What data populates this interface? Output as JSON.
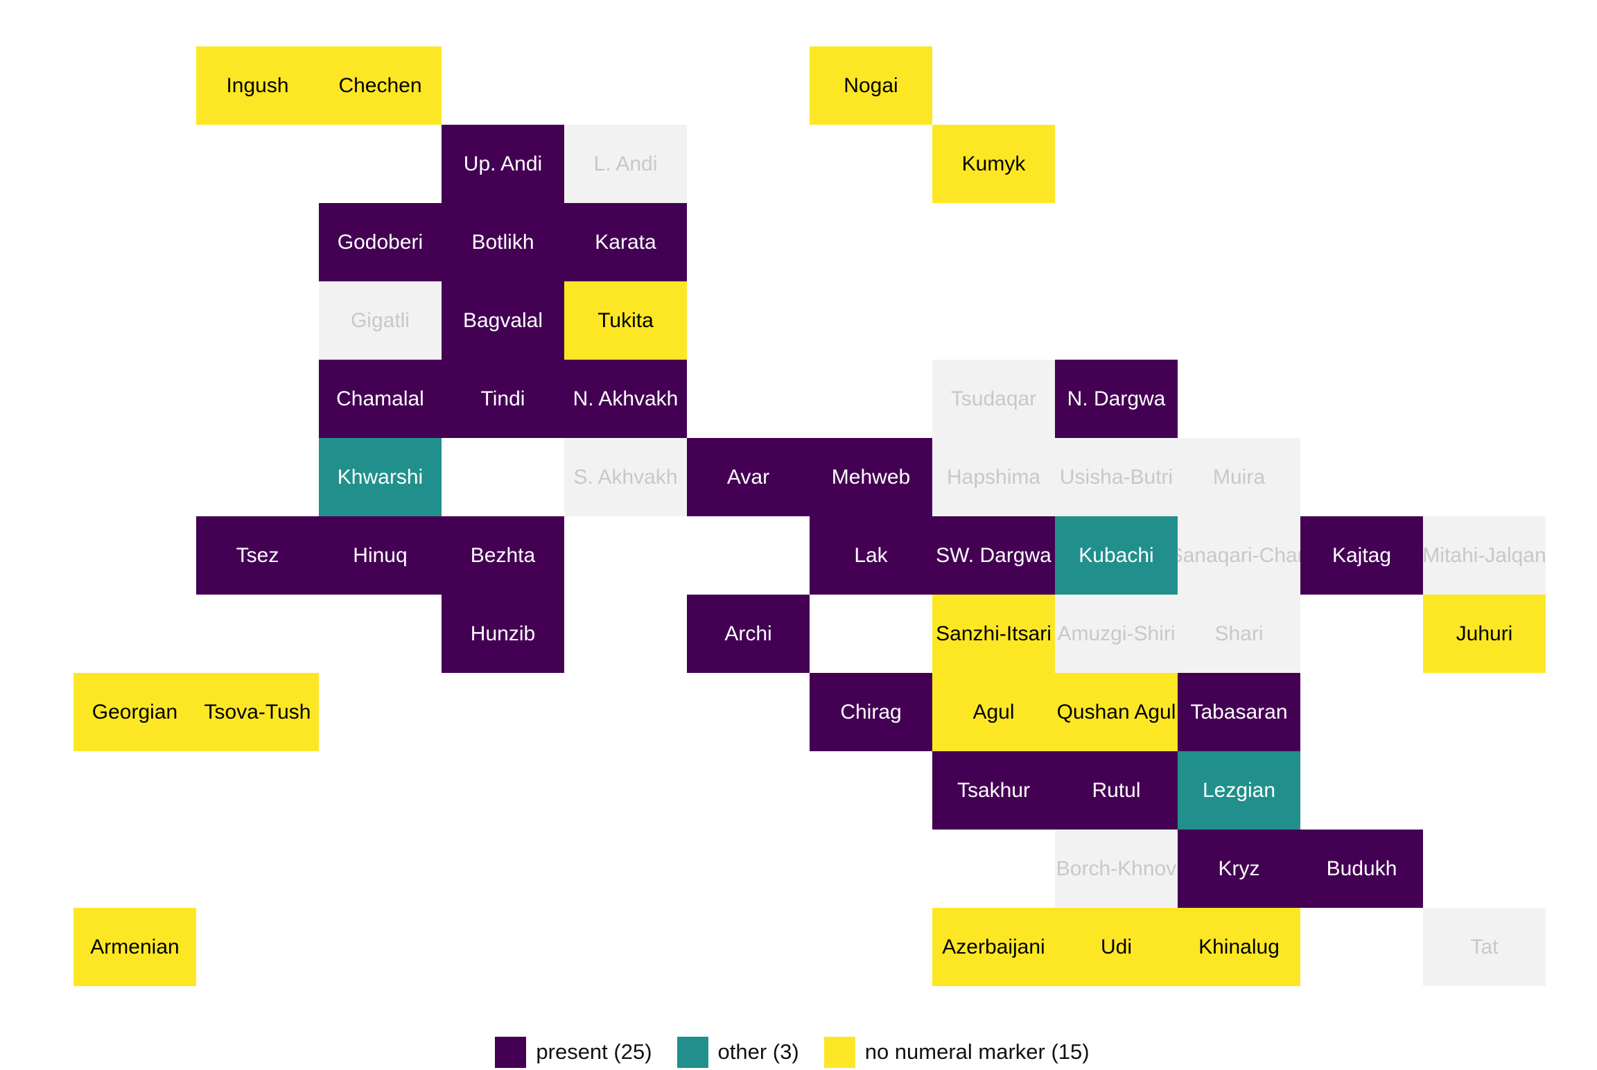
{
  "chart_data": {
    "type": "tile-grid",
    "colors": {
      "present": "#440154",
      "other": "#21908C",
      "no numeral marker": "#FDE725",
      "no data": "#F2F2F2"
    },
    "text_colors": {
      "present": "#ffffff",
      "other": "#ffffff",
      "no numeral marker": "#000000",
      "no data": "#c8c8c8"
    },
    "legend": [
      {
        "value": "present",
        "label": "present (25)",
        "color": "#440154"
      },
      {
        "value": "other",
        "label": "other (3)",
        "color": "#21908C"
      },
      {
        "value": "no numeral marker",
        "label": "no numeral marker (15)",
        "color": "#FDE725"
      }
    ],
    "tiles": [
      {
        "name": "Ingush",
        "col": 1,
        "row": 0,
        "value": "no numeral marker"
      },
      {
        "name": "Chechen",
        "col": 2,
        "row": 0,
        "value": "no numeral marker"
      },
      {
        "name": "Nogai",
        "col": 6,
        "row": 0,
        "value": "no numeral marker"
      },
      {
        "name": "Up. Andi",
        "col": 3,
        "row": 1,
        "value": "present"
      },
      {
        "name": "L. Andi",
        "col": 4,
        "row": 1,
        "value": "no data"
      },
      {
        "name": "Kumyk",
        "col": 7,
        "row": 1,
        "value": "no numeral marker"
      },
      {
        "name": "Godoberi",
        "col": 2,
        "row": 2,
        "value": "present"
      },
      {
        "name": "Botlikh",
        "col": 3,
        "row": 2,
        "value": "present"
      },
      {
        "name": "Karata",
        "col": 4,
        "row": 2,
        "value": "present"
      },
      {
        "name": "Gigatli",
        "col": 2,
        "row": 3,
        "value": "no data"
      },
      {
        "name": "Bagvalal",
        "col": 3,
        "row": 3,
        "value": "present"
      },
      {
        "name": "Tukita",
        "col": 4,
        "row": 3,
        "value": "no numeral marker"
      },
      {
        "name": "Chamalal",
        "col": 2,
        "row": 4,
        "value": "present"
      },
      {
        "name": "Tindi",
        "col": 3,
        "row": 4,
        "value": "present"
      },
      {
        "name": "N. Akhvakh",
        "col": 4,
        "row": 4,
        "value": "present"
      },
      {
        "name": "Tsudaqar",
        "col": 7,
        "row": 4,
        "value": "no data"
      },
      {
        "name": "N. Dargwa",
        "col": 8,
        "row": 4,
        "value": "present"
      },
      {
        "name": "Khwarshi",
        "col": 2,
        "row": 5,
        "value": "other"
      },
      {
        "name": "S. Akhvakh",
        "col": 4,
        "row": 5,
        "value": "no data"
      },
      {
        "name": "Avar",
        "col": 5,
        "row": 5,
        "value": "present"
      },
      {
        "name": "Mehweb",
        "col": 6,
        "row": 5,
        "value": "present"
      },
      {
        "name": "Hapshima",
        "col": 7,
        "row": 5,
        "value": "no data"
      },
      {
        "name": "Usisha-Butri",
        "col": 8,
        "row": 5,
        "value": "no data"
      },
      {
        "name": "Muira",
        "col": 9,
        "row": 5,
        "value": "no data"
      },
      {
        "name": "Tsez",
        "col": 1,
        "row": 6,
        "value": "present"
      },
      {
        "name": "Hinuq",
        "col": 2,
        "row": 6,
        "value": "present"
      },
      {
        "name": "Bezhta",
        "col": 3,
        "row": 6,
        "value": "present"
      },
      {
        "name": "Lak",
        "col": 6,
        "row": 6,
        "value": "present"
      },
      {
        "name": "SW. Dargwa",
        "col": 7,
        "row": 6,
        "value": "present"
      },
      {
        "name": "Kubachi",
        "col": 8,
        "row": 6,
        "value": "other"
      },
      {
        "name": "Sanaqari-Chan",
        "col": 9,
        "row": 6,
        "value": "no data"
      },
      {
        "name": "Kajtag",
        "col": 10,
        "row": 6,
        "value": "present"
      },
      {
        "name": "Mitahi-Jalqan",
        "col": 11,
        "row": 6,
        "value": "no data"
      },
      {
        "name": "Hunzib",
        "col": 3,
        "row": 7,
        "value": "present"
      },
      {
        "name": "Archi",
        "col": 5,
        "row": 7,
        "value": "present"
      },
      {
        "name": "Sanzhi-Itsari",
        "col": 7,
        "row": 7,
        "value": "no numeral marker"
      },
      {
        "name": "Amuzgi-Shiri",
        "col": 8,
        "row": 7,
        "value": "no data"
      },
      {
        "name": "Shari",
        "col": 9,
        "row": 7,
        "value": "no data"
      },
      {
        "name": "Juhuri",
        "col": 11,
        "row": 7,
        "value": "no numeral marker"
      },
      {
        "name": "Georgian",
        "col": 0,
        "row": 8,
        "value": "no numeral marker"
      },
      {
        "name": "Tsova-Tush",
        "col": 1,
        "row": 8,
        "value": "no numeral marker"
      },
      {
        "name": "Chirag",
        "col": 6,
        "row": 8,
        "value": "present"
      },
      {
        "name": "Agul",
        "col": 7,
        "row": 8,
        "value": "no numeral marker"
      },
      {
        "name": "Qushan Agul",
        "col": 8,
        "row": 8,
        "value": "no numeral marker"
      },
      {
        "name": "Tabasaran",
        "col": 9,
        "row": 8,
        "value": "present"
      },
      {
        "name": "Tsakhur",
        "col": 7,
        "row": 9,
        "value": "present"
      },
      {
        "name": "Rutul",
        "col": 8,
        "row": 9,
        "value": "present"
      },
      {
        "name": "Lezgian",
        "col": 9,
        "row": 9,
        "value": "other"
      },
      {
        "name": "Borch-Khnov",
        "col": 8,
        "row": 10,
        "value": "no data"
      },
      {
        "name": "Kryz",
        "col": 9,
        "row": 10,
        "value": "present"
      },
      {
        "name": "Budukh",
        "col": 10,
        "row": 10,
        "value": "present"
      },
      {
        "name": "Armenian",
        "col": 0,
        "row": 11,
        "value": "no numeral marker"
      },
      {
        "name": "Azerbaijani",
        "col": 7,
        "row": 11,
        "value": "no numeral marker"
      },
      {
        "name": "Udi",
        "col": 8,
        "row": 11,
        "value": "no numeral marker"
      },
      {
        "name": "Khinalug",
        "col": 9,
        "row": 11,
        "value": "no numeral marker"
      },
      {
        "name": "Tat",
        "col": 11,
        "row": 11,
        "value": "no data"
      }
    ]
  }
}
